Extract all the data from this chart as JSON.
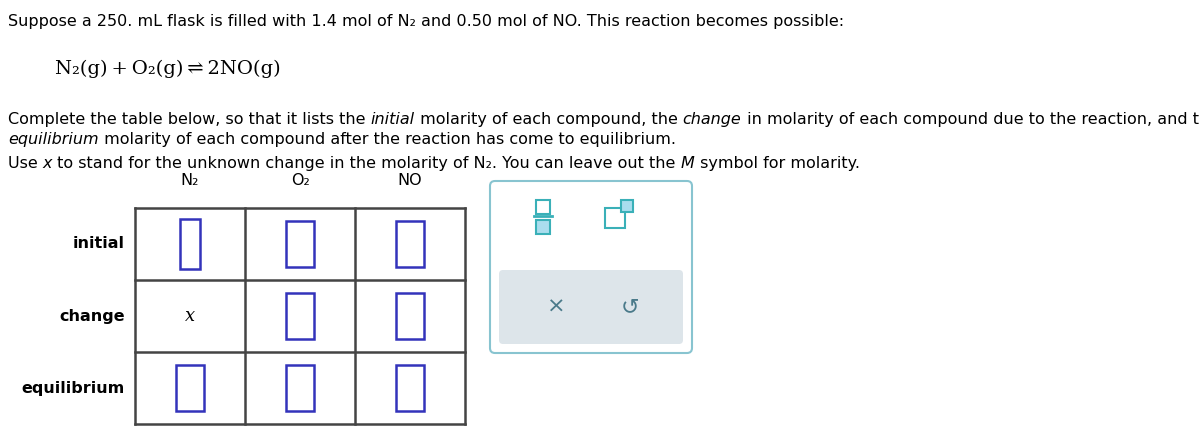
{
  "title_text": "Suppose a 250. mL flask is filled with 1.4 mol of N₂ and 0.50 mol of NO. This reaction becomes possible:",
  "equation": "N₂(g) + O₂(g) ⇌ 2NO(g)",
  "para1_parts": [
    [
      "Complete the table below, so that it lists the ",
      "normal"
    ],
    [
      "initial",
      "italic"
    ],
    [
      " molarity of each compound, the ",
      "normal"
    ],
    [
      "change",
      "italic"
    ],
    [
      " in molarity of each compound due to the reaction, and the",
      "normal"
    ]
  ],
  "para2_parts": [
    [
      "equilibrium",
      "italic"
    ],
    [
      " molarity of each compound after the reaction has come to equilibrium.",
      "normal"
    ]
  ],
  "para3_parts": [
    [
      "Use ",
      "normal"
    ],
    [
      "x",
      "italic"
    ],
    [
      " to stand for the unknown change in the molarity of N₂. You can leave out the ",
      "normal"
    ],
    [
      "M",
      "italic"
    ],
    [
      " symbol for molarity.",
      "normal"
    ]
  ],
  "row_labels": [
    "initial",
    "change",
    "equilibrium"
  ],
  "col_labels": [
    "N₂",
    "O₂",
    "NO"
  ],
  "change_n2_text": "x",
  "table_border_color": "#444444",
  "input_box_color": "#3333bb",
  "bg_color": "#ffffff",
  "text_color": "#000000",
  "panel_border_color": "#88c4d0",
  "panel_btn_color": "#4a7a8a",
  "panel_icon_color": "#3ab0b8",
  "panel_gray_bg": "#dde5ea"
}
